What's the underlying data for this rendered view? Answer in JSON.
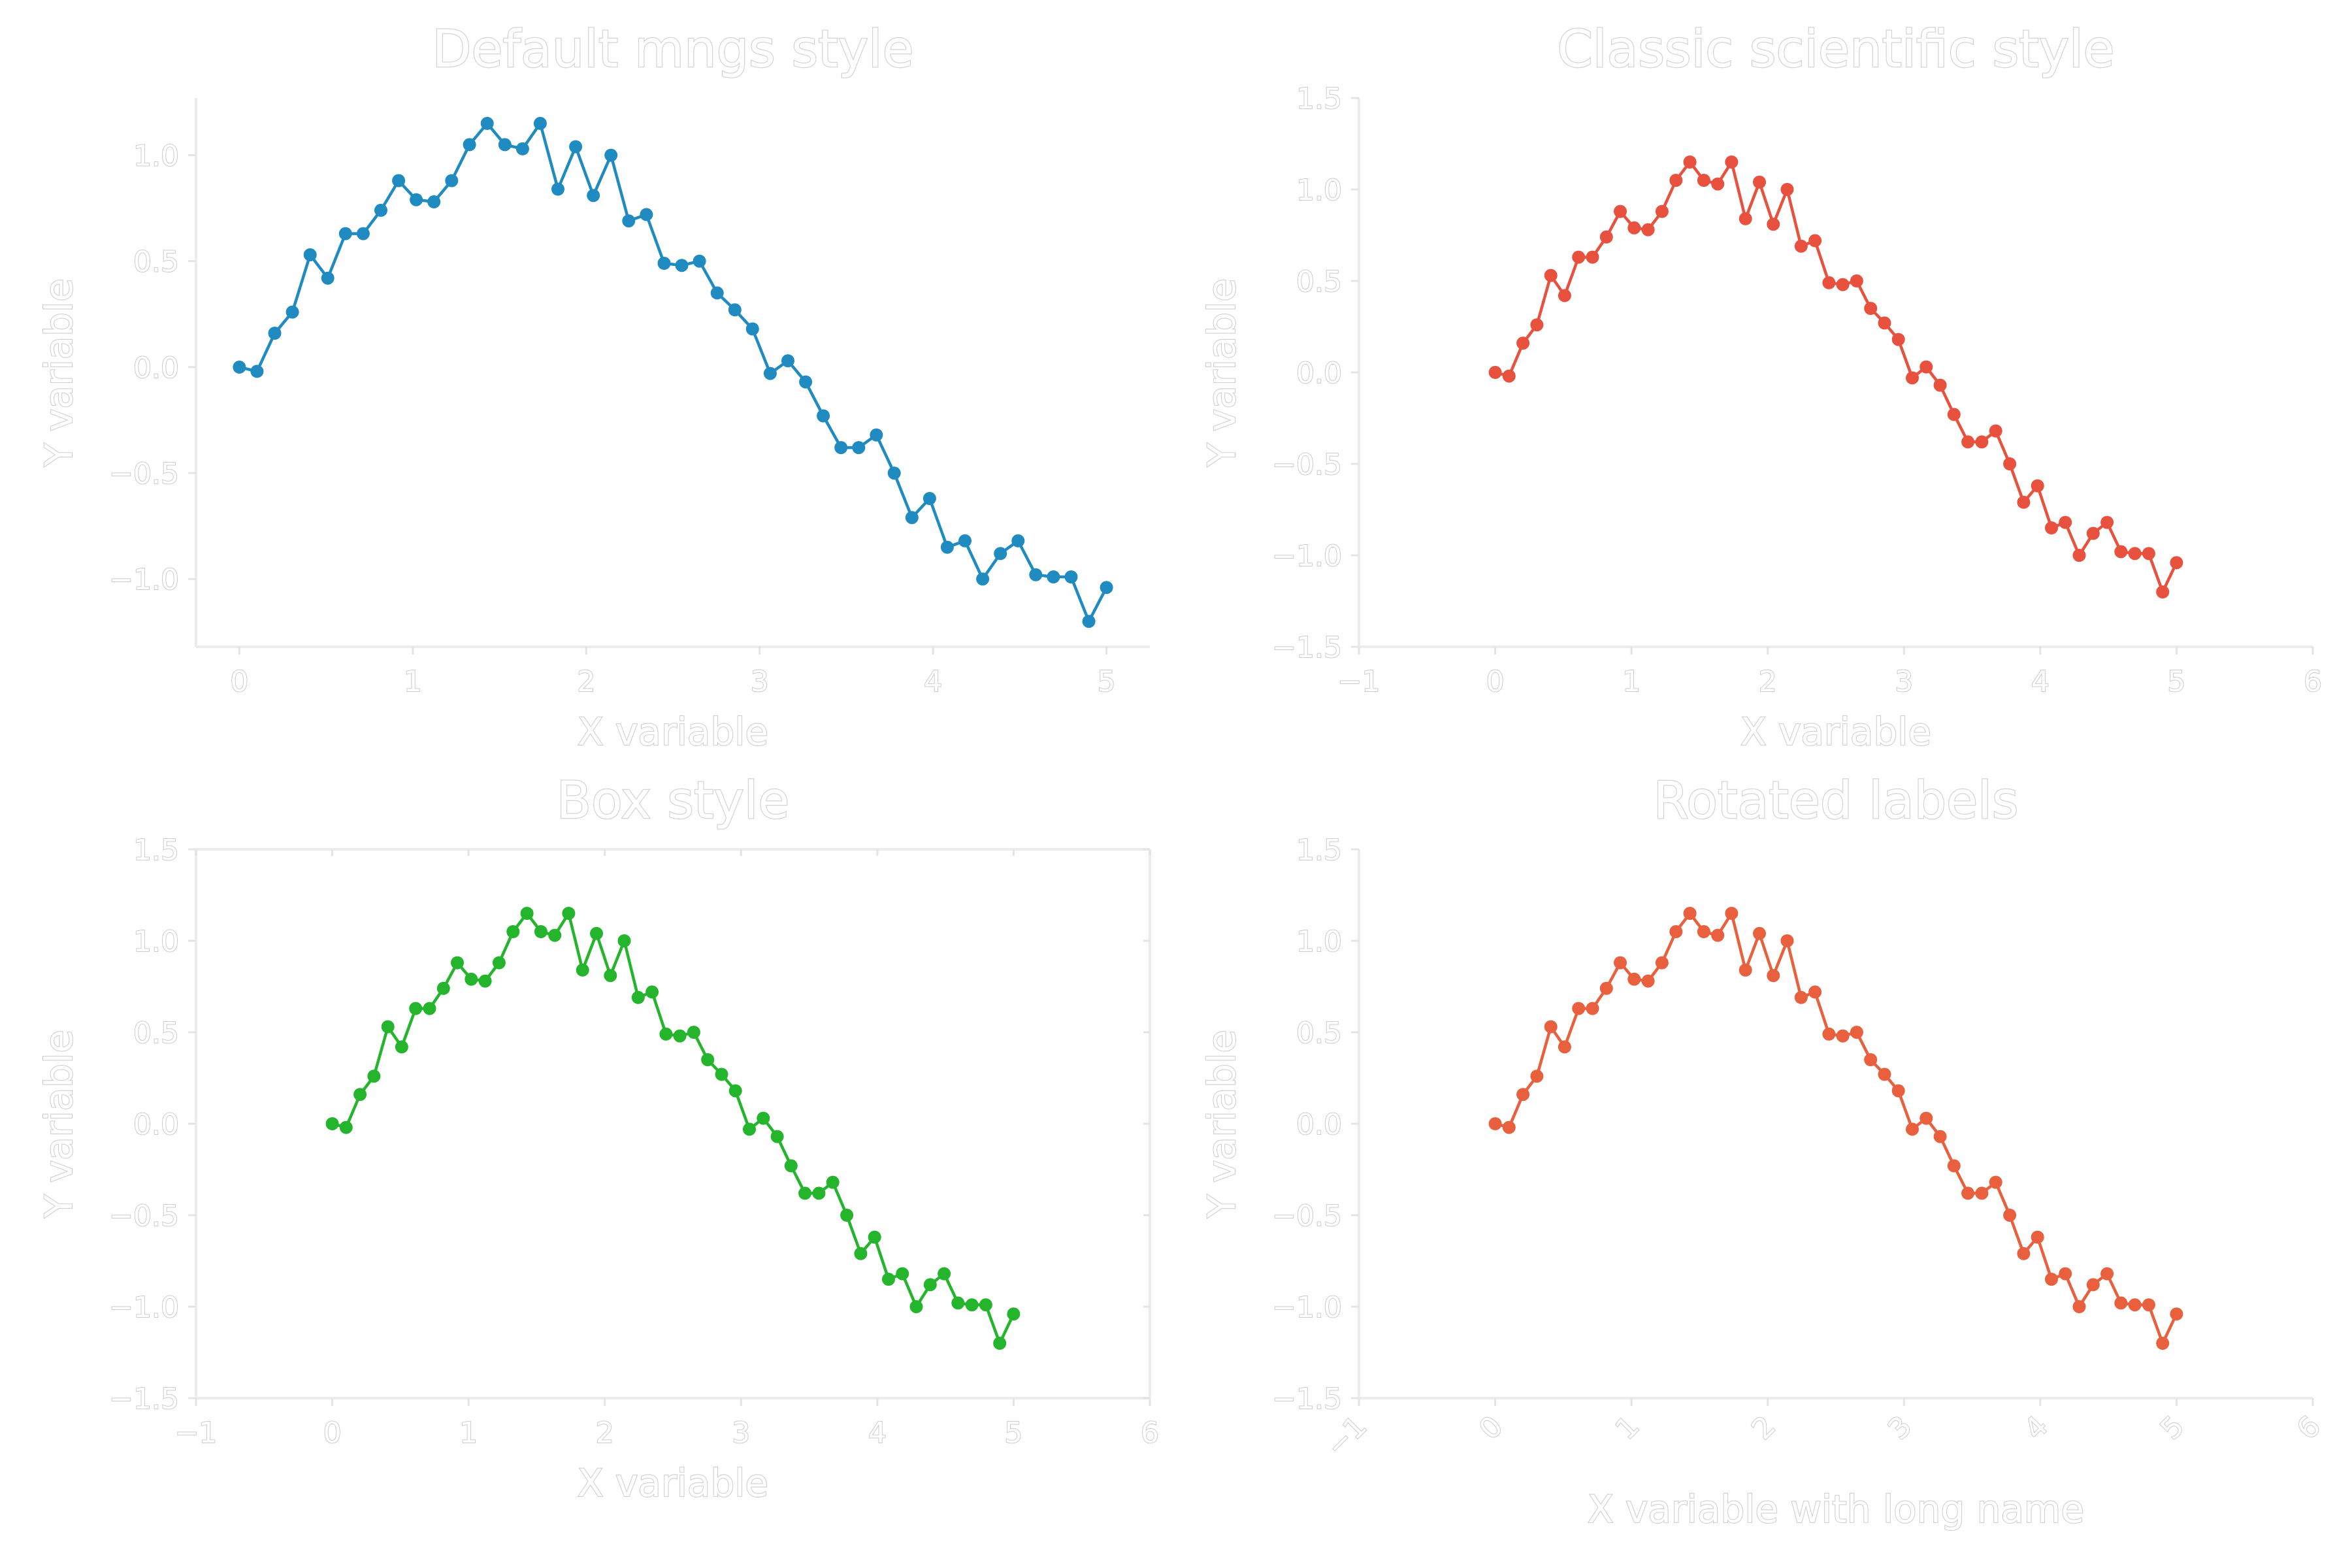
{
  "chart_data": [
    {
      "type": "line",
      "title": "Default mngs style",
      "xlabel": "X variable",
      "ylabel": "Y variable",
      "xlim": [
        -0.25,
        5.25
      ],
      "ylim": [
        -1.32,
        1.27
      ],
      "xticks": [
        0,
        1,
        2,
        3,
        4,
        5
      ],
      "yticks": [
        -1.0,
        -0.5,
        0.0,
        0.5,
        1.0
      ],
      "xtick_labels": [
        "0",
        "1",
        "2",
        "3",
        "4",
        "5"
      ],
      "ytick_labels": [
        "−1.0",
        "−0.5",
        "0.0",
        "0.5",
        "1.0"
      ],
      "box": false,
      "rotate_xticks": false,
      "color": "#1f8bc0",
      "series": [
        {
          "x": [
            0.0,
            0.102,
            0.204,
            0.306,
            0.408,
            0.51,
            0.612,
            0.714,
            0.816,
            0.918,
            1.02,
            1.122,
            1.224,
            1.327,
            1.429,
            1.531,
            1.633,
            1.735,
            1.837,
            1.939,
            2.041,
            2.143,
            2.245,
            2.347,
            2.449,
            2.551,
            2.653,
            2.755,
            2.857,
            2.959,
            3.061,
            3.163,
            3.265,
            3.367,
            3.469,
            3.571,
            3.673,
            3.776,
            3.878,
            3.98,
            4.082,
            4.184,
            4.286,
            4.388,
            4.49,
            4.592,
            4.694,
            4.796,
            4.898,
            5.0
          ],
          "values": [
            0.0,
            -0.02,
            0.16,
            0.26,
            0.53,
            0.42,
            0.63,
            0.63,
            0.74,
            0.88,
            0.79,
            0.78,
            0.88,
            1.05,
            1.15,
            1.05,
            1.03,
            1.15,
            0.84,
            1.04,
            0.81,
            1.0,
            0.69,
            0.72,
            0.49,
            0.48,
            0.5,
            0.35,
            0.27,
            0.18,
            -0.03,
            0.03,
            -0.07,
            -0.23,
            -0.38,
            -0.38,
            -0.32,
            -0.5,
            -0.71,
            -0.62,
            -0.85,
            -0.82,
            -1.0,
            -0.88,
            -0.82,
            -0.98,
            -0.99,
            -0.99,
            -1.2,
            -1.04
          ]
        }
      ]
    },
    {
      "type": "line",
      "title": "Classic scientific style",
      "xlabel": "X variable",
      "ylabel": "Y variable",
      "xlim": [
        -1,
        6
      ],
      "ylim": [
        -1.5,
        1.5
      ],
      "xticks": [
        -1,
        0,
        1,
        2,
        3,
        4,
        5,
        6
      ],
      "yticks": [
        -1.5,
        -1.0,
        -0.5,
        0.0,
        0.5,
        1.0,
        1.5
      ],
      "xtick_labels": [
        "−1",
        "0",
        "1",
        "2",
        "3",
        "4",
        "5",
        "6"
      ],
      "ytick_labels": [
        "−1.5",
        "−1.0",
        "−0.5",
        "0.0",
        "0.5",
        "1.0",
        "1.5"
      ],
      "box": false,
      "rotate_xticks": false,
      "color": "#e9513f",
      "series": [
        {
          "x": [
            0.0,
            0.102,
            0.204,
            0.306,
            0.408,
            0.51,
            0.612,
            0.714,
            0.816,
            0.918,
            1.02,
            1.122,
            1.224,
            1.327,
            1.429,
            1.531,
            1.633,
            1.735,
            1.837,
            1.939,
            2.041,
            2.143,
            2.245,
            2.347,
            2.449,
            2.551,
            2.653,
            2.755,
            2.857,
            2.959,
            3.061,
            3.163,
            3.265,
            3.367,
            3.469,
            3.571,
            3.673,
            3.776,
            3.878,
            3.98,
            4.082,
            4.184,
            4.286,
            4.388,
            4.49,
            4.592,
            4.694,
            4.796,
            4.898,
            5.0
          ],
          "values": [
            0.0,
            -0.02,
            0.16,
            0.26,
            0.53,
            0.42,
            0.63,
            0.63,
            0.74,
            0.88,
            0.79,
            0.78,
            0.88,
            1.05,
            1.15,
            1.05,
            1.03,
            1.15,
            0.84,
            1.04,
            0.81,
            1.0,
            0.69,
            0.72,
            0.49,
            0.48,
            0.5,
            0.35,
            0.27,
            0.18,
            -0.03,
            0.03,
            -0.07,
            -0.23,
            -0.38,
            -0.38,
            -0.32,
            -0.5,
            -0.71,
            -0.62,
            -0.85,
            -0.82,
            -1.0,
            -0.88,
            -0.82,
            -0.98,
            -0.99,
            -0.99,
            -1.2,
            -1.04
          ]
        }
      ]
    },
    {
      "type": "line",
      "title": "Box style",
      "xlabel": "X variable",
      "ylabel": "Y variable",
      "xlim": [
        -1,
        6
      ],
      "ylim": [
        -1.5,
        1.5
      ],
      "xticks": [
        -1,
        0,
        1,
        2,
        3,
        4,
        5,
        6
      ],
      "yticks": [
        -1.5,
        -1.0,
        -0.5,
        0.0,
        0.5,
        1.0,
        1.5
      ],
      "xtick_labels": [
        "−1",
        "0",
        "1",
        "2",
        "3",
        "4",
        "5",
        "6"
      ],
      "ytick_labels": [
        "−1.5",
        "−1.0",
        "−0.5",
        "0.0",
        "0.5",
        "1.0",
        "1.5"
      ],
      "box": true,
      "rotate_xticks": false,
      "color": "#24b52c",
      "series": [
        {
          "x": [
            0.0,
            0.102,
            0.204,
            0.306,
            0.408,
            0.51,
            0.612,
            0.714,
            0.816,
            0.918,
            1.02,
            1.122,
            1.224,
            1.327,
            1.429,
            1.531,
            1.633,
            1.735,
            1.837,
            1.939,
            2.041,
            2.143,
            2.245,
            2.347,
            2.449,
            2.551,
            2.653,
            2.755,
            2.857,
            2.959,
            3.061,
            3.163,
            3.265,
            3.367,
            3.469,
            3.571,
            3.673,
            3.776,
            3.878,
            3.98,
            4.082,
            4.184,
            4.286,
            4.388,
            4.49,
            4.592,
            4.694,
            4.796,
            4.898,
            5.0
          ],
          "values": [
            0.0,
            -0.02,
            0.16,
            0.26,
            0.53,
            0.42,
            0.63,
            0.63,
            0.74,
            0.88,
            0.79,
            0.78,
            0.88,
            1.05,
            1.15,
            1.05,
            1.03,
            1.15,
            0.84,
            1.04,
            0.81,
            1.0,
            0.69,
            0.72,
            0.49,
            0.48,
            0.5,
            0.35,
            0.27,
            0.18,
            -0.03,
            0.03,
            -0.07,
            -0.23,
            -0.38,
            -0.38,
            -0.32,
            -0.5,
            -0.71,
            -0.62,
            -0.85,
            -0.82,
            -1.0,
            -0.88,
            -0.82,
            -0.98,
            -0.99,
            -0.99,
            -1.2,
            -1.04
          ]
        }
      ]
    },
    {
      "type": "line",
      "title": "Rotated labels",
      "xlabel": "X variable with long name",
      "ylabel": "Y variable",
      "xlim": [
        -1,
        6
      ],
      "ylim": [
        -1.5,
        1.5
      ],
      "xticks": [
        -1,
        0,
        1,
        2,
        3,
        4,
        5,
        6
      ],
      "yticks": [
        -1.5,
        -1.0,
        -0.5,
        0.0,
        0.5,
        1.0,
        1.5
      ],
      "xtick_labels": [
        "−1",
        "0",
        "1",
        "2",
        "3",
        "4",
        "5",
        "6"
      ],
      "ytick_labels": [
        "−1.5",
        "−1.0",
        "−0.5",
        "0.0",
        "0.5",
        "1.0",
        "1.5"
      ],
      "box": false,
      "rotate_xticks": true,
      "color": "#e8603e",
      "series": [
        {
          "x": [
            0.0,
            0.102,
            0.204,
            0.306,
            0.408,
            0.51,
            0.612,
            0.714,
            0.816,
            0.918,
            1.02,
            1.122,
            1.224,
            1.327,
            1.429,
            1.531,
            1.633,
            1.735,
            1.837,
            1.939,
            2.041,
            2.143,
            2.245,
            2.347,
            2.449,
            2.551,
            2.653,
            2.755,
            2.857,
            2.959,
            3.061,
            3.163,
            3.265,
            3.367,
            3.469,
            3.571,
            3.673,
            3.776,
            3.878,
            3.98,
            4.082,
            4.184,
            4.286,
            4.388,
            4.49,
            4.592,
            4.694,
            4.796,
            4.898,
            5.0
          ],
          "values": [
            0.0,
            -0.02,
            0.16,
            0.26,
            0.53,
            0.42,
            0.63,
            0.63,
            0.74,
            0.88,
            0.79,
            0.78,
            0.88,
            1.05,
            1.15,
            1.05,
            1.03,
            1.15,
            0.84,
            1.04,
            0.81,
            1.0,
            0.69,
            0.72,
            0.49,
            0.48,
            0.5,
            0.35,
            0.27,
            0.18,
            -0.03,
            0.03,
            -0.07,
            -0.23,
            -0.38,
            -0.38,
            -0.32,
            -0.5,
            -0.71,
            -0.62,
            -0.85,
            -0.82,
            -1.0,
            -0.88,
            -0.82,
            -0.98,
            -0.99,
            -0.99,
            -1.2,
            -1.04
          ]
        }
      ]
    }
  ]
}
